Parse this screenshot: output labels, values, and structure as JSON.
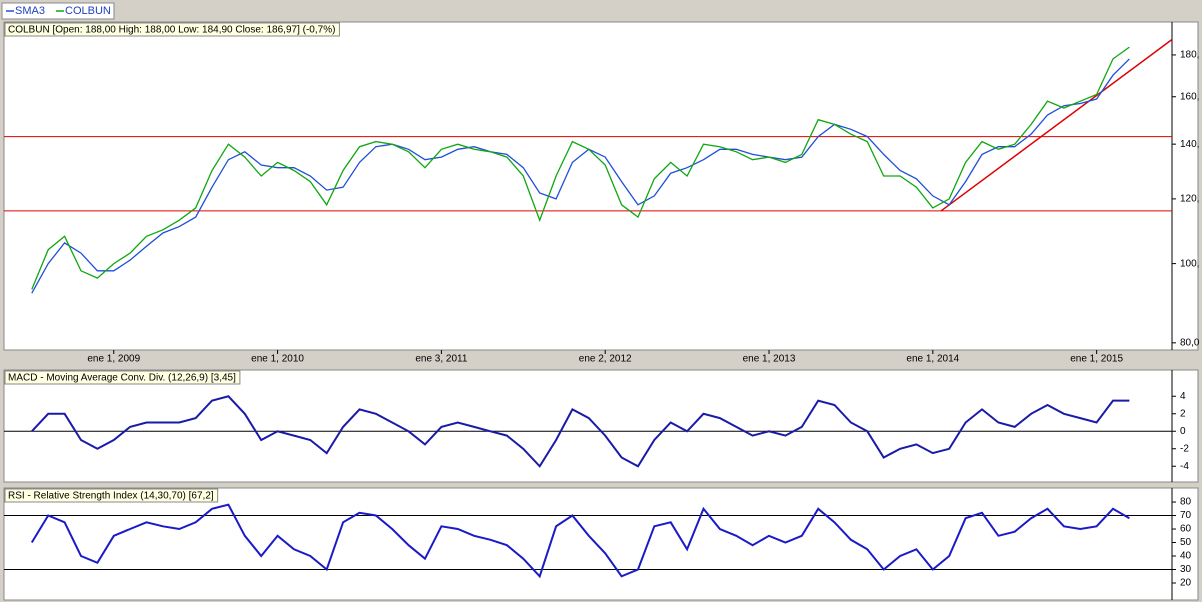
{
  "chart_data": [
    {
      "type": "line",
      "title": "COLBUN [Open: 188,00  High: 188,00  Low: 184,90  Close: 186,97] (-0,7%)",
      "log_scale": true,
      "x": [
        2008.5,
        2008.6,
        2008.7,
        2008.8,
        2008.9,
        2009.0,
        2009.1,
        2009.2,
        2009.3,
        2009.4,
        2009.5,
        2009.6,
        2009.7,
        2009.8,
        2009.9,
        2010.0,
        2010.1,
        2010.2,
        2010.3,
        2010.4,
        2010.5,
        2010.6,
        2010.7,
        2010.8,
        2010.9,
        2011.0,
        2011.1,
        2011.2,
        2011.3,
        2011.4,
        2011.5,
        2011.6,
        2011.7,
        2011.8,
        2011.9,
        2012.0,
        2012.1,
        2012.2,
        2012.3,
        2012.4,
        2012.5,
        2012.6,
        2012.7,
        2012.8,
        2012.9,
        2013.0,
        2013.1,
        2013.2,
        2013.3,
        2013.4,
        2013.5,
        2013.6,
        2013.7,
        2013.8,
        2013.9,
        2014.0,
        2014.1,
        2014.2,
        2014.3,
        2014.4,
        2014.5,
        2014.6,
        2014.7,
        2014.8,
        2014.9,
        2015.0,
        2015.1,
        2015.2
      ],
      "xlim": [
        2008.33,
        2015.46
      ],
      "xticks": [
        {
          "value": 2009.0,
          "label": "ene 1, 2009"
        },
        {
          "value": 2010.0,
          "label": "ene 1, 2010"
        },
        {
          "value": 2011.0,
          "label": "ene 3, 2011"
        },
        {
          "value": 2012.0,
          "label": "ene 2, 2012"
        },
        {
          "value": 2013.0,
          "label": "ene 1, 2013"
        },
        {
          "value": 2014.0,
          "label": "ene 1, 2014"
        },
        {
          "value": 2015.0,
          "label": "ene 1, 2015"
        }
      ],
      "ylim": [
        78.4,
        197.5
      ],
      "yticks": [
        {
          "value": 180,
          "label": "180,"
        },
        {
          "value": 160,
          "label": "160,"
        },
        {
          "value": 140,
          "label": "140,"
        },
        {
          "value": 120,
          "label": "120,"
        },
        {
          "value": 100,
          "label": "100,"
        },
        {
          "value": 80,
          "label": "80,0"
        }
      ],
      "series": [
        {
          "name": "SMA3",
          "color": "#1f4fd8",
          "values": [
            92,
            100,
            106,
            103,
            98,
            98,
            101,
            105,
            109,
            111,
            114,
            124,
            134,
            137,
            132,
            131,
            131,
            128,
            123,
            124,
            133,
            139,
            140,
            138,
            134,
            135,
            138,
            139,
            137,
            136,
            131,
            122,
            120,
            133,
            138,
            135,
            126,
            118,
            121,
            129,
            131,
            134,
            138,
            138,
            136,
            135,
            134,
            135,
            143,
            148,
            146,
            143,
            136,
            130,
            127,
            121,
            118,
            126,
            136,
            139,
            139,
            144,
            152,
            156,
            157,
            159,
            170,
            178
          ]
        },
        {
          "name": "COLBUN",
          "color": "#11a611",
          "values": [
            93,
            104,
            108,
            98,
            96,
            100,
            103,
            108,
            110,
            113,
            117,
            130,
            140,
            135,
            128,
            133,
            130,
            126,
            118,
            130,
            139,
            141,
            140,
            137,
            131,
            138,
            140,
            138,
            137,
            135,
            128,
            113,
            128,
            141,
            138,
            132,
            118,
            114,
            127,
            133,
            128,
            140,
            139,
            137,
            134,
            135,
            133,
            136,
            150,
            148,
            144,
            141,
            128,
            128,
            124,
            117,
            120,
            133,
            141,
            138,
            140,
            148,
            158,
            155,
            158,
            161,
            178,
            184
          ]
        }
      ],
      "reference_color": "#e00000",
      "hlines": [
        143,
        116
      ],
      "trendline": {
        "x": [
          2014.05,
          2015.46
        ],
        "values": [
          116,
          188
        ]
      }
    },
    {
      "type": "line",
      "title": "MACD - Moving Average Conv. Div. (12,26,9) [3,45]",
      "ylim": [
        -5.8,
        7
      ],
      "yticks": [
        4,
        2,
        0,
        -2,
        -4
      ],
      "series": [
        {
          "color": "#1a1aa8",
          "values": [
            0,
            2,
            2,
            -1,
            -2,
            -1,
            0.5,
            1,
            1,
            1,
            1.5,
            3.5,
            4,
            2,
            -1,
            0,
            -0.5,
            -1,
            -2.5,
            0.5,
            2.5,
            2,
            1,
            0,
            -1.5,
            0.5,
            1,
            0.5,
            0,
            -0.5,
            -2,
            -4,
            -1,
            2.5,
            1.5,
            -0.5,
            -3,
            -4,
            -1,
            1,
            0,
            2,
            1.5,
            0.5,
            -0.5,
            0,
            -0.5,
            0.5,
            3.5,
            3,
            1,
            0,
            -3,
            -2,
            -1.5,
            -2.5,
            -2,
            1,
            2.5,
            1,
            0.5,
            2,
            3,
            2,
            1.5,
            1,
            3.5,
            3.5
          ]
        }
      ],
      "hlines": [
        0
      ]
    },
    {
      "type": "line",
      "title": "RSI - Relative Strength Index (14,30,70) [67,2]",
      "ylim": [
        7.4,
        90.4
      ],
      "yticks": [
        80,
        70,
        60,
        50,
        40,
        30,
        20
      ],
      "series": [
        {
          "color": "#1a1ac8",
          "values": [
            50,
            70,
            65,
            40,
            35,
            55,
            60,
            65,
            62,
            60,
            65,
            75,
            78,
            55,
            40,
            55,
            45,
            40,
            30,
            65,
            72,
            70,
            60,
            48,
            38,
            62,
            60,
            55,
            52,
            48,
            38,
            25,
            62,
            70,
            55,
            42,
            25,
            30,
            62,
            65,
            45,
            75,
            60,
            55,
            48,
            55,
            50,
            55,
            75,
            65,
            52,
            45,
            30,
            40,
            45,
            30,
            40,
            68,
            72,
            55,
            58,
            68,
            75,
            62,
            60,
            62,
            75,
            68
          ]
        }
      ],
      "hlines": [
        30,
        70
      ]
    }
  ]
}
